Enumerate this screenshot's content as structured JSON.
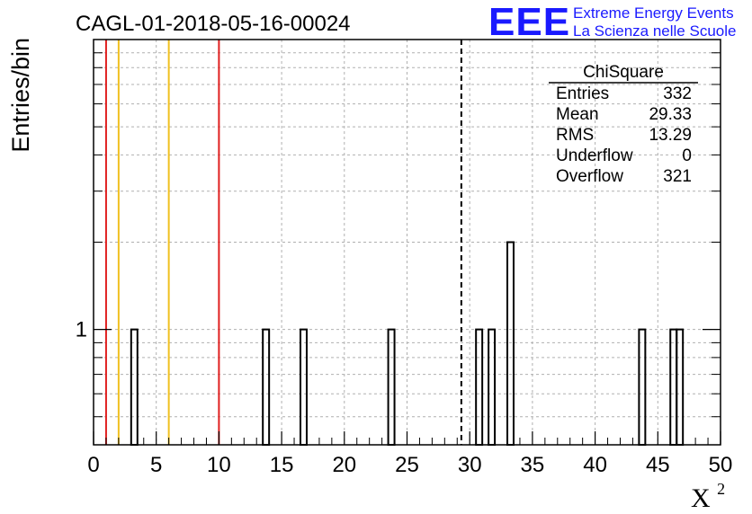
{
  "chart_data": {
    "type": "bar",
    "title": "CAGL-01-2018-05-16-00024",
    "xlabel": "X",
    "xlabel_superscript": "2",
    "ylabel": "Entries/bin",
    "xlim": [
      0,
      50
    ],
    "y_scale": "log",
    "ylim": [
      0.4,
      10
    ],
    "x_ticks": [
      "0",
      "5",
      "10",
      "15",
      "20",
      "25",
      "30",
      "35",
      "40",
      "45",
      "50"
    ],
    "y_tick_labels": [
      {
        "value": 1,
        "label": "1"
      }
    ],
    "grid": true,
    "bin_width": 0.5,
    "bins": [
      {
        "x0": 3.0,
        "count": 1
      },
      {
        "x0": 13.5,
        "count": 1
      },
      {
        "x0": 16.5,
        "count": 1
      },
      {
        "x0": 23.5,
        "count": 1
      },
      {
        "x0": 30.5,
        "count": 1
      },
      {
        "x0": 31.5,
        "count": 1
      },
      {
        "x0": 33.0,
        "count": 2
      },
      {
        "x0": 43.5,
        "count": 1
      },
      {
        "x0": 46.0,
        "count": 1
      },
      {
        "x0": 46.5,
        "count": 1
      }
    ],
    "vertical_lines": [
      {
        "x": 1,
        "color": "#e02020",
        "style": "solid"
      },
      {
        "x": 2,
        "color": "#f0c020",
        "style": "solid"
      },
      {
        "x": 6,
        "color": "#f0c020",
        "style": "solid"
      },
      {
        "x": 10,
        "color": "#e02020",
        "style": "solid"
      },
      {
        "x": 29.33,
        "color": "#000000",
        "style": "dashed"
      }
    ],
    "stats_box": {
      "title": "ChiSquare",
      "rows": [
        {
          "label": "Entries",
          "value": "332"
        },
        {
          "label": "Mean",
          "value": "29.33"
        },
        {
          "label": "RMS",
          "value": "13.29"
        },
        {
          "label": "Underflow",
          "value": "0"
        },
        {
          "label": "Overflow",
          "value": "321"
        }
      ]
    }
  },
  "logo": {
    "mark": "EEE",
    "line1": "Extreme Energy Events",
    "line2": "La Scienza nelle Scuole",
    "color": "#1a1aff"
  }
}
